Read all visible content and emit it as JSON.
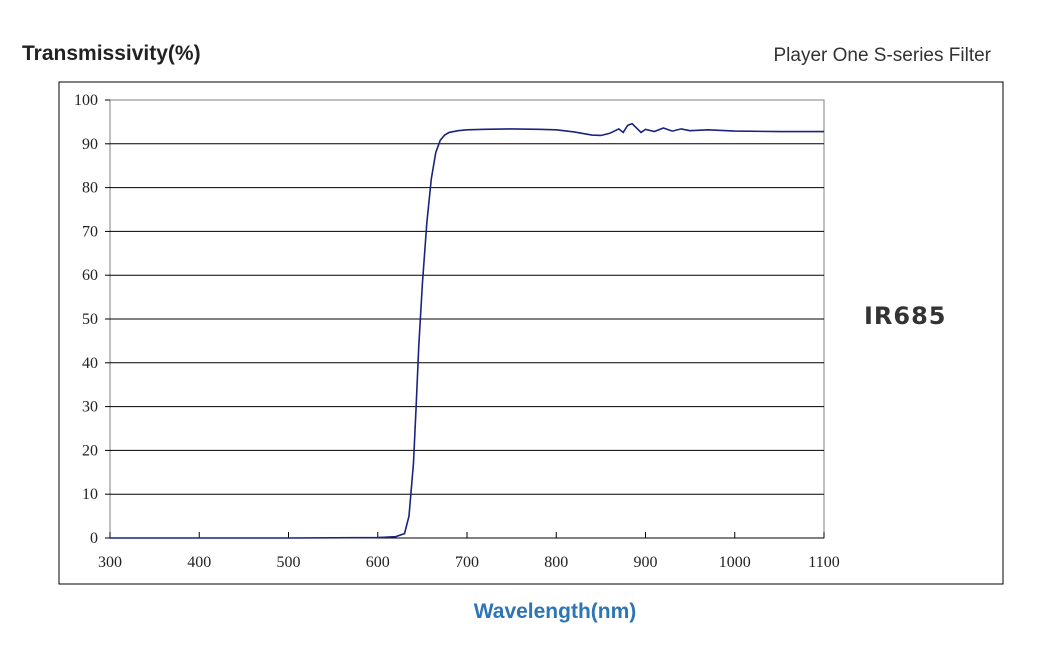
{
  "header": {
    "left_title": "Transmissivity(%)",
    "right_title": "Player One S-series Filter"
  },
  "colors": {
    "curve": "#1a237e",
    "xlabel": "#2e75b6",
    "grid": "#000000",
    "frame": "#000000"
  },
  "chart_data": {
    "type": "line",
    "title": "Player One S-series Filter",
    "xlabel": "Wavelength(nm)",
    "ylabel": "Transmissivity(%)",
    "annotation": "IR685",
    "xlim": [
      300,
      1100
    ],
    "ylim": [
      0,
      100
    ],
    "x_ticks": [
      300,
      400,
      500,
      600,
      700,
      800,
      900,
      1000,
      1100
    ],
    "y_ticks": [
      0,
      10,
      20,
      30,
      40,
      50,
      60,
      70,
      80,
      90,
      100
    ],
    "grid": "horizontal",
    "series": [
      {
        "x": [
          300,
          400,
          500,
          600,
          620,
          630,
          635,
          640,
          643,
          646,
          650,
          655,
          660,
          665,
          670,
          675,
          680,
          690,
          700,
          720,
          750,
          780,
          800,
          820,
          840,
          850,
          860,
          870,
          875,
          880,
          885,
          890,
          895,
          900,
          910,
          920,
          930,
          940,
          950,
          970,
          1000,
          1050,
          1100
        ],
        "y": [
          0,
          0,
          0,
          0.1,
          0.3,
          1,
          5,
          17,
          30,
          44,
          58,
          72,
          82,
          88,
          90.8,
          92,
          92.6,
          93,
          93.2,
          93.3,
          93.4,
          93.3,
          93.2,
          92.7,
          92,
          91.9,
          92.4,
          93.4,
          92.6,
          94.2,
          94.6,
          93.6,
          92.6,
          93.3,
          92.8,
          93.6,
          92.9,
          93.4,
          93,
          93.2,
          92.9,
          92.8,
          92.8
        ]
      }
    ]
  }
}
